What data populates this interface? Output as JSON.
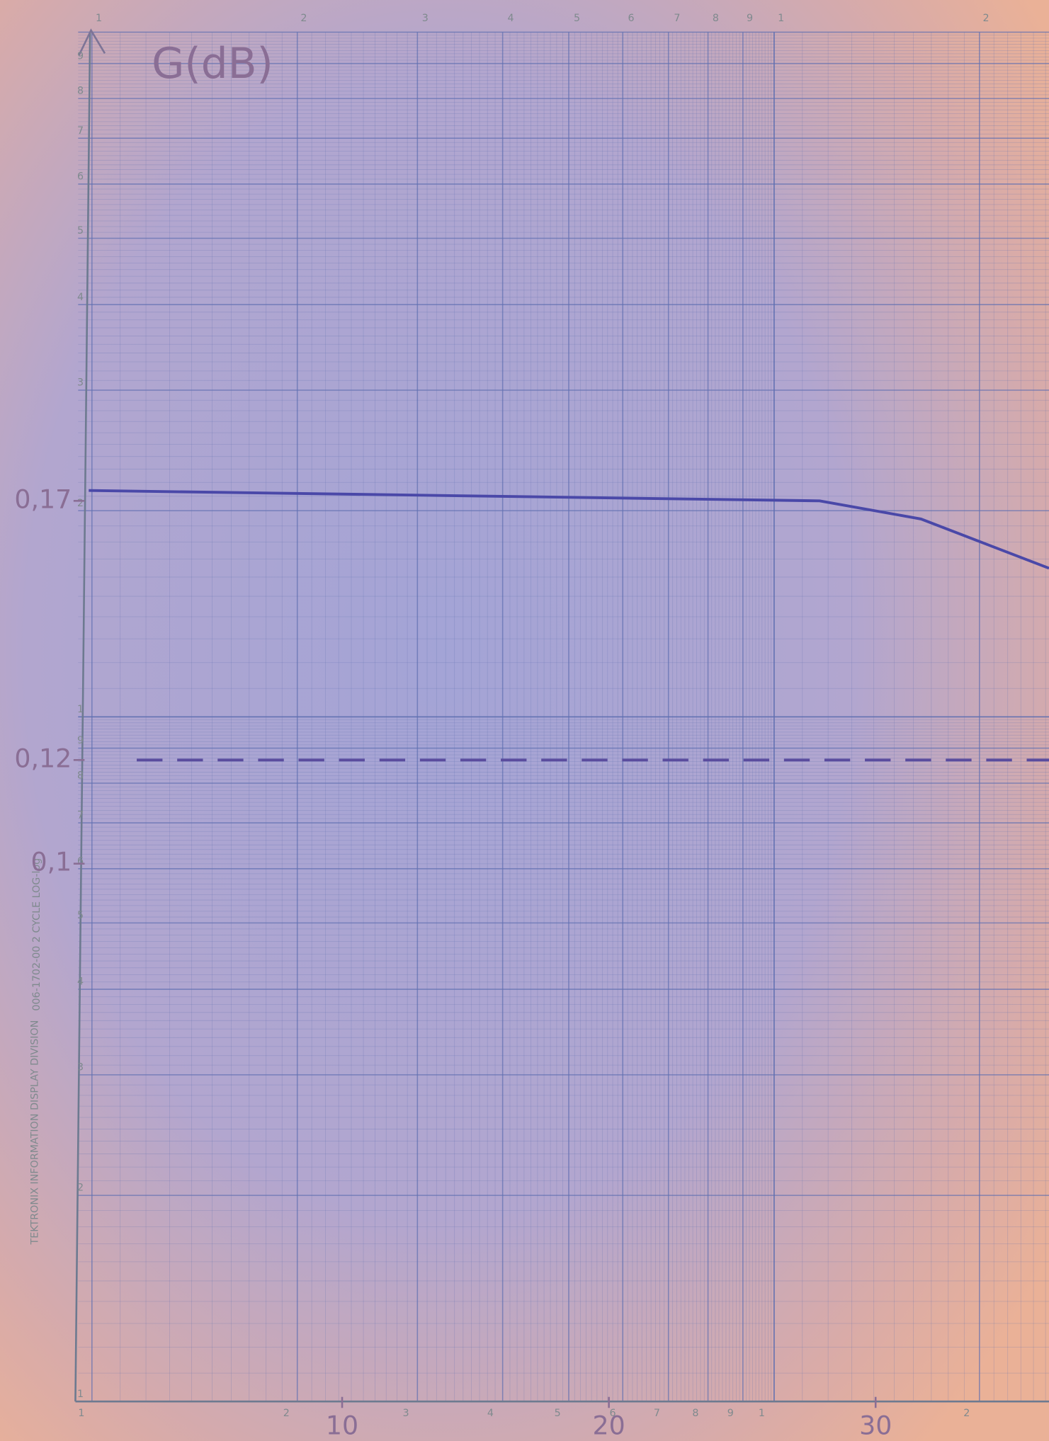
{
  "chart_data": {
    "type": "line",
    "title": "G(dB)",
    "xlim": [
      0,
      36.5
    ],
    "xticks": [
      10,
      20,
      30
    ],
    "ylim": [
      0,
      0.26
    ],
    "yticks": [
      {
        "value": 0.17,
        "label": "0,17"
      },
      {
        "value": 0.12,
        "label": "0,12"
      },
      {
        "value": 0.1,
        "label": "0,1"
      }
    ],
    "grid": true,
    "series": [
      {
        "color": "#4a48a8",
        "dash": false,
        "x": [
          0.5,
          27.9,
          31.7,
          36.5
        ],
        "values": [
          0.172,
          0.17,
          0.1665,
          0.157
        ]
      },
      {
        "color": "#5a4c9e",
        "dash": true,
        "x": [
          2.3,
          36.5
        ],
        "values": [
          0.12,
          0.12
        ]
      }
    ]
  },
  "paper": {
    "top_labels": [
      "1",
      "2",
      "3",
      "4",
      "5",
      "6",
      "7",
      "8",
      "9",
      "1",
      "2"
    ],
    "left_labels": [
      "9",
      "8",
      "7",
      "6",
      "5",
      "4",
      "3",
      "2",
      "1",
      "9",
      "8",
      "7",
      "6",
      "5",
      "4",
      "3",
      "2",
      "1"
    ],
    "bottom_labels": [
      "1",
      "2",
      "3",
      "4",
      "5",
      "6",
      "7",
      "8",
      "9",
      "1",
      "2"
    ],
    "maker": "TEKTRONIX  INFORMATION DISPLAY DIVISION",
    "code": "006-1702-00  2 CYCLE  LOG-log"
  }
}
